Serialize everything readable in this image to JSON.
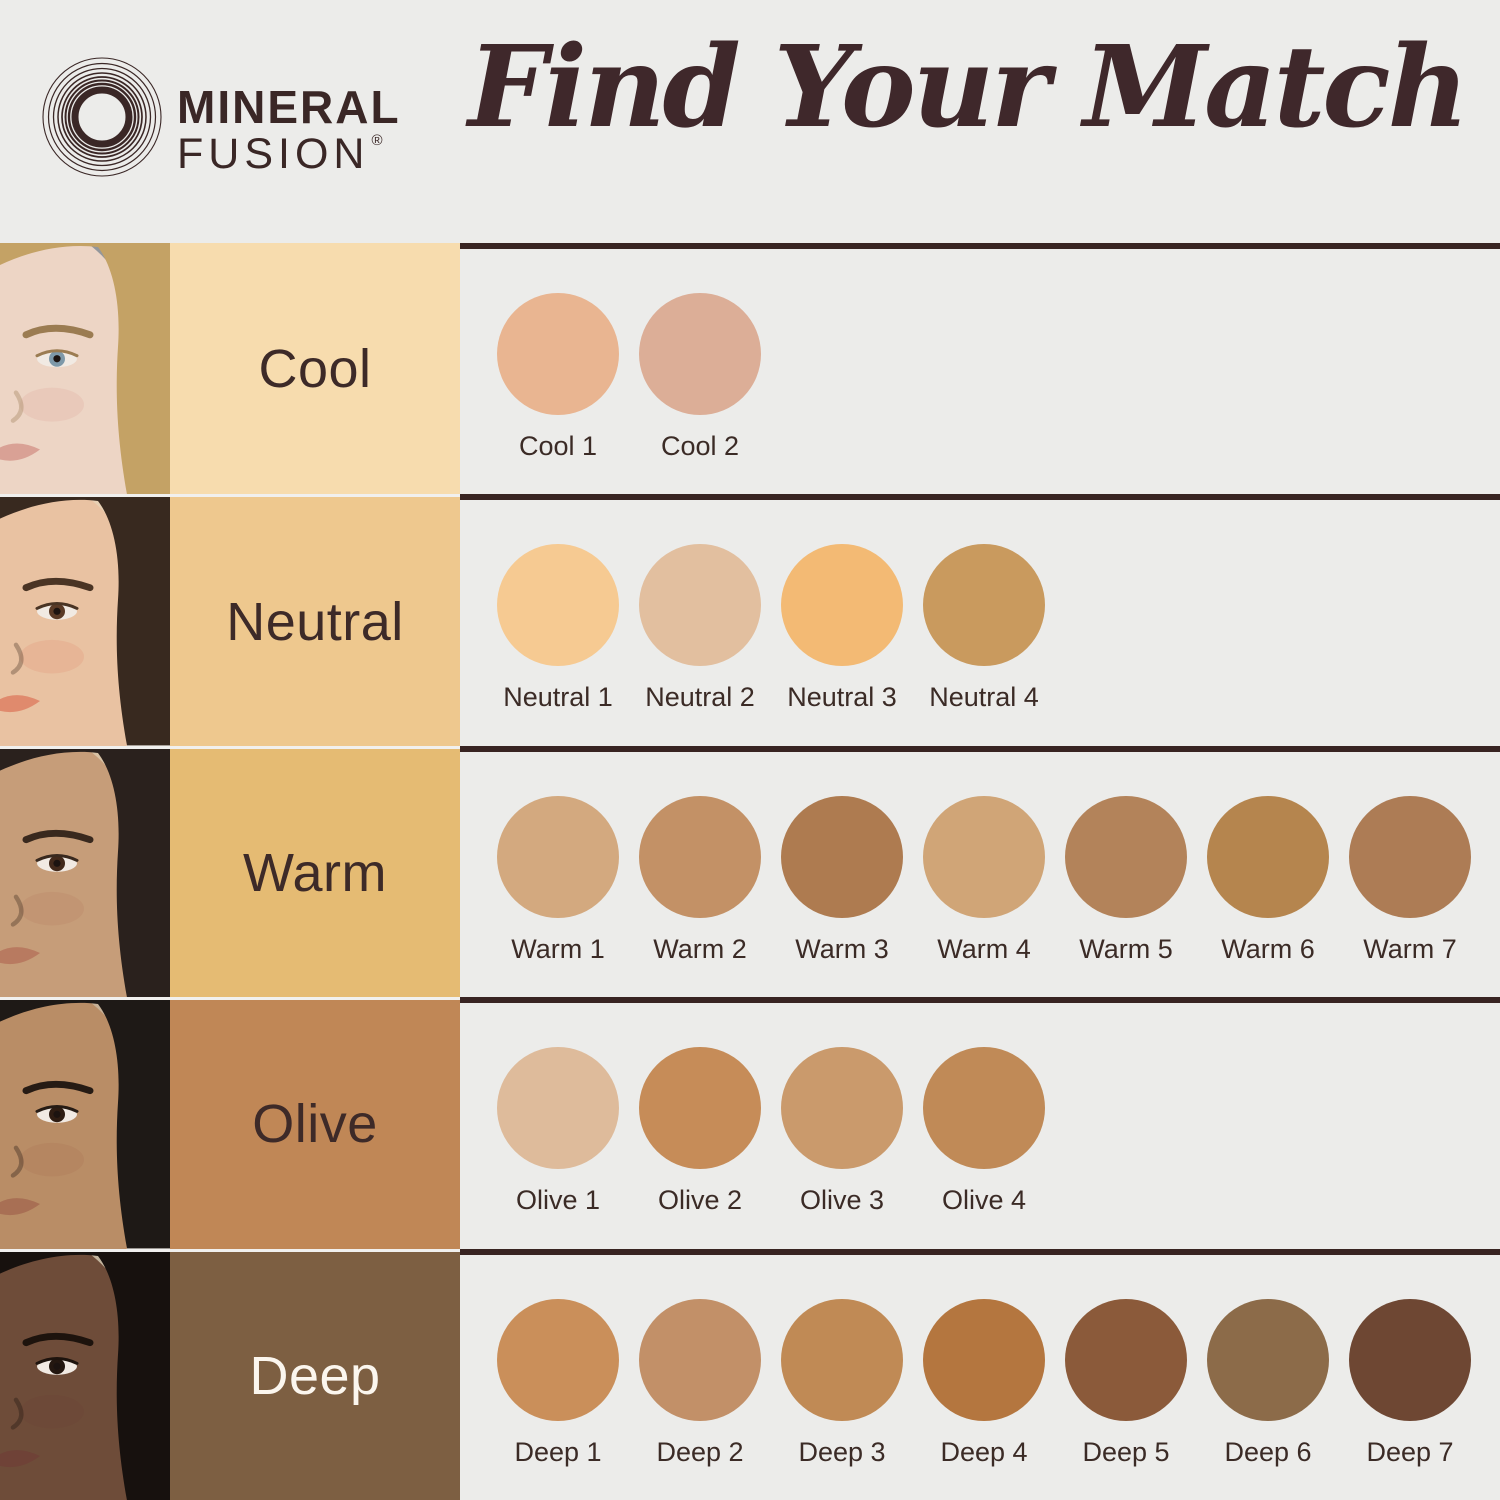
{
  "header": {
    "brand_line1": "MINERAL",
    "brand_line2": "FUSION",
    "registered_mark": "®",
    "title": "Find Your Match"
  },
  "colors": {
    "page_background": "#ececea",
    "text_dark_brown": "#3a2a26",
    "title_brown": "#3f282b",
    "separator_line": "#382422",
    "deep_label_text": "#fbf6ee"
  },
  "rows": [
    {
      "id": "cool",
      "label": "Cool",
      "label_bg": "#f7dcae",
      "label_text_color": "#3d2a28",
      "face": {
        "alt": "fair-skinned woman with blonde hair on gray background",
        "bg": "#94979b",
        "skin": "#edd5c5",
        "hair": "#c4a265",
        "brow": "#9b7c52",
        "iris": "#7e99a9",
        "lips": "#d9a195"
      },
      "swatches": [
        {
          "name": "Cool 1",
          "color": "#e9b591"
        },
        {
          "name": "Cool 2",
          "color": "#dcae97"
        }
      ]
    },
    {
      "id": "neutral",
      "label": "Neutral",
      "label_bg": "#eec88e",
      "label_text_color": "#3d2a28",
      "face": {
        "alt": "light-medium skinned woman with dark hair on beige background",
        "bg": "#e7d0b4",
        "skin": "#e9c2a2",
        "hair": "#38291f",
        "brow": "#4a3424",
        "iris": "#5a3a26",
        "lips": "#e08a6d"
      },
      "swatches": [
        {
          "name": "Neutral 1",
          "color": "#f6ca92"
        },
        {
          "name": "Neutral 2",
          "color": "#e2bf9f"
        },
        {
          "name": "Neutral 3",
          "color": "#f3ba74"
        },
        {
          "name": "Neutral 4",
          "color": "#c99a5e"
        }
      ]
    },
    {
      "id": "warm",
      "label": "Warm",
      "label_bg": "#e5bb73",
      "label_text_color": "#3d2a28",
      "face": {
        "alt": "medium tan skinned woman with dark hair on tan background",
        "bg": "#d8c2a4",
        "skin": "#c69d79",
        "hair": "#2a211d",
        "brow": "#39291e",
        "iris": "#42291b",
        "lips": "#b87a60"
      },
      "swatches": [
        {
          "name": "Warm 1",
          "color": "#d3a97f"
        },
        {
          "name": "Warm 2",
          "color": "#c39166"
        },
        {
          "name": "Warm 3",
          "color": "#ae7b50"
        },
        {
          "name": "Warm 4",
          "color": "#d0a577"
        },
        {
          "name": "Warm 5",
          "color": "#b3835a"
        },
        {
          "name": "Warm 6",
          "color": "#b5854e"
        },
        {
          "name": "Warm 7",
          "color": "#ad7c55"
        }
      ]
    },
    {
      "id": "olive",
      "label": "Olive",
      "label_bg": "#c08756",
      "label_text_color": "#3d2a28",
      "face": {
        "alt": "olive skinned woman with black hair on warm beige background",
        "bg": "#c7b197",
        "skin": "#b98d66",
        "hair": "#1e1916",
        "brow": "#261b14",
        "iris": "#2e1c12",
        "lips": "#a86f54"
      },
      "swatches": [
        {
          "name": "Olive 1",
          "color": "#debb9b"
        },
        {
          "name": "Olive 2",
          "color": "#c68c58"
        },
        {
          "name": "Olive 3",
          "color": "#ca9a6c"
        },
        {
          "name": "Olive 4",
          "color": "#c08a57"
        }
      ]
    },
    {
      "id": "deep",
      "label": "Deep",
      "label_bg": "#7d5f42",
      "label_text_color": "#fbf6ee",
      "face": {
        "alt": "deep skinned woman with short black hair on khaki background",
        "bg": "#c3b59e",
        "skin": "#6e4c39",
        "hair": "#17110e",
        "brow": "#1d130d",
        "iris": "#241710",
        "lips": "#6f4237"
      },
      "swatches": [
        {
          "name": "Deep 1",
          "color": "#ca8f5a"
        },
        {
          "name": "Deep 2",
          "color": "#c29068"
        },
        {
          "name": "Deep 3",
          "color": "#c08a55"
        },
        {
          "name": "Deep 4",
          "color": "#b4763f"
        },
        {
          "name": "Deep 5",
          "color": "#8b5a3a"
        },
        {
          "name": "Deep 6",
          "color": "#8c6b49"
        },
        {
          "name": "Deep 7",
          "color": "#6e4733"
        }
      ]
    }
  ]
}
